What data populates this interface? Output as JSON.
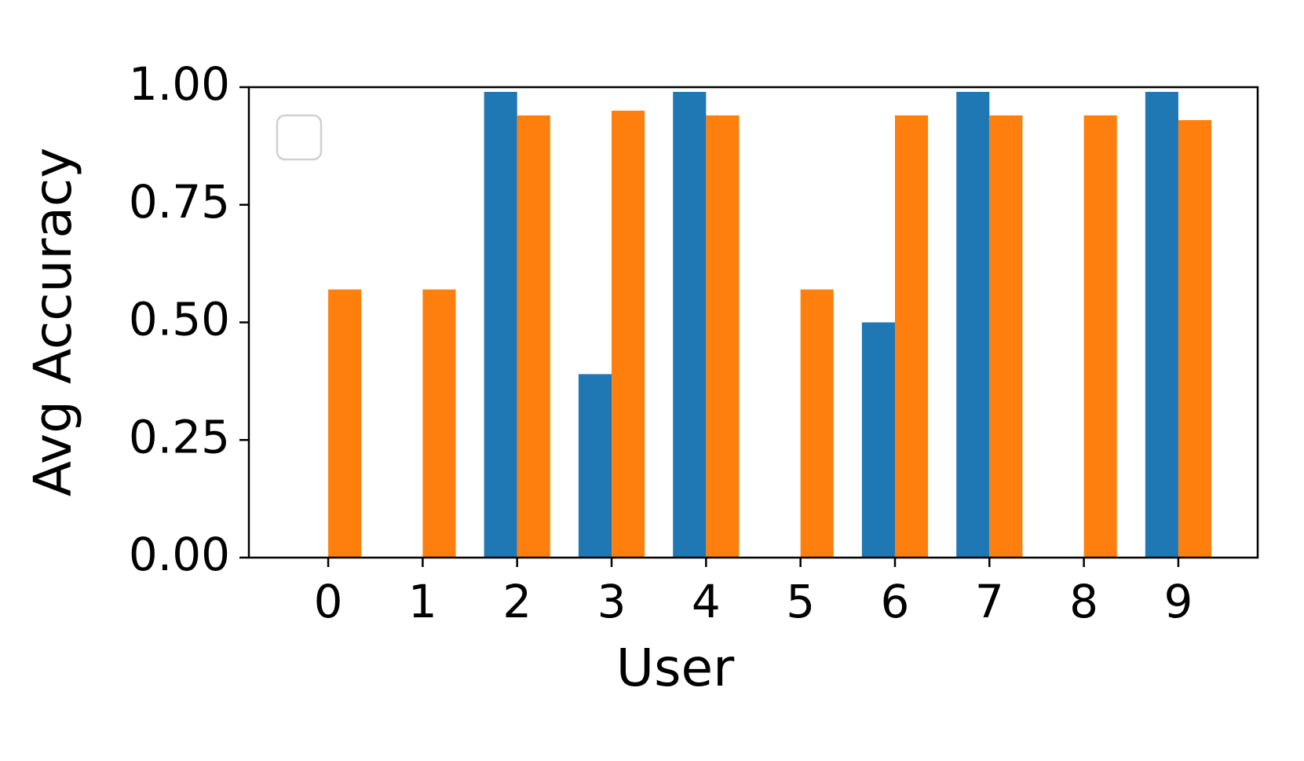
{
  "chart_data": {
    "type": "bar",
    "x_label": "User",
    "y_label": "Avg Accuracy",
    "categories": [
      "0",
      "1",
      "2",
      "3",
      "4",
      "5",
      "6",
      "7",
      "8",
      "9"
    ],
    "series": [
      {
        "color": "#1f77b4",
        "values": [
          0,
          0,
          0.99,
          0.39,
          0.99,
          0,
          0.5,
          0.99,
          0,
          0.99
        ]
      },
      {
        "color": "#ff7f0e",
        "values": [
          0.57,
          0.57,
          0.94,
          0.95,
          0.94,
          0.57,
          0.94,
          0.94,
          0.94,
          0.93
        ]
      }
    ],
    "ylim": [
      0,
      1
    ],
    "yticks": [
      {
        "value": 0,
        "label": "0.00"
      },
      {
        "value": 0.25,
        "label": "0.25"
      },
      {
        "value": 0.5,
        "label": "0.50"
      },
      {
        "value": 0.75,
        "label": "0.75"
      },
      {
        "value": 1,
        "label": "1.00"
      }
    ],
    "legend": "upper left"
  }
}
